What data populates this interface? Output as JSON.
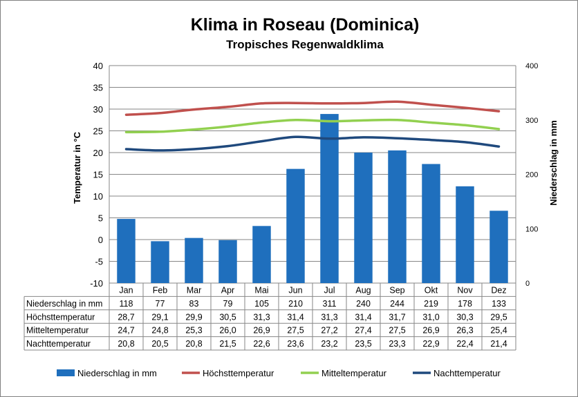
{
  "chart_data": {
    "type": "bar",
    "title": "Klima in Roseau (Dominica)",
    "subtitle": "Tropisches Regenwaldklima",
    "ylabel_left": "Temperatur in °C",
    "ylabel_right": "Niederschlag in mm",
    "ylim_left": [
      -10,
      40
    ],
    "ylim_right": [
      0,
      400
    ],
    "yticks_left": [
      "40",
      "35",
      "30",
      "25",
      "20",
      "15",
      "10",
      "5",
      "0",
      "-5",
      "-10"
    ],
    "yticks_right": [
      "400",
      "300",
      "200",
      "100",
      "0"
    ],
    "categories": [
      "Jan",
      "Feb",
      "Mar",
      "Apr",
      "Mai",
      "Jun",
      "Jul",
      "Aug",
      "Sep",
      "Okt",
      "Nov",
      "Dez"
    ],
    "series": [
      {
        "name": "Niederschlag in mm",
        "kind": "bar",
        "axis": "right",
        "color": "#1f6fbd",
        "values": [
          118,
          77,
          83,
          79,
          105,
          210,
          311,
          240,
          244,
          219,
          178,
          133
        ],
        "labels": [
          "118",
          "77",
          "83",
          "79",
          "105",
          "210",
          "311",
          "240",
          "244",
          "219",
          "178",
          "133"
        ]
      },
      {
        "name": "Höchsttemperatur",
        "kind": "line",
        "axis": "left",
        "color": "#c0504d",
        "values": [
          28.7,
          29.1,
          29.9,
          30.5,
          31.3,
          31.4,
          31.3,
          31.4,
          31.7,
          31.0,
          30.3,
          29.5
        ],
        "labels": [
          "28,7",
          "29,1",
          "29,9",
          "30,5",
          "31,3",
          "31,4",
          "31,3",
          "31,4",
          "31,7",
          "31,0",
          "30,3",
          "29,5"
        ]
      },
      {
        "name": "Mitteltemperatur",
        "kind": "line",
        "axis": "left",
        "color": "#92d050",
        "values": [
          24.7,
          24.8,
          25.3,
          26.0,
          26.9,
          27.5,
          27.2,
          27.4,
          27.5,
          26.9,
          26.3,
          25.4
        ],
        "labels": [
          "24,7",
          "24,8",
          "25,3",
          "26,0",
          "26,9",
          "27,5",
          "27,2",
          "27,4",
          "27,5",
          "26,9",
          "26,3",
          "25,4"
        ]
      },
      {
        "name": "Nachttemperatur",
        "kind": "line",
        "axis": "left",
        "color": "#1f497d",
        "values": [
          20.8,
          20.5,
          20.8,
          21.5,
          22.6,
          23.6,
          23.2,
          23.5,
          23.3,
          22.9,
          22.4,
          21.4
        ],
        "labels": [
          "20,8",
          "20,5",
          "20,8",
          "21,5",
          "22,6",
          "23,6",
          "23,2",
          "23,5",
          "23,3",
          "22,9",
          "22,4",
          "21,4"
        ]
      }
    ],
    "grid": true,
    "legend_position": "bottom"
  }
}
